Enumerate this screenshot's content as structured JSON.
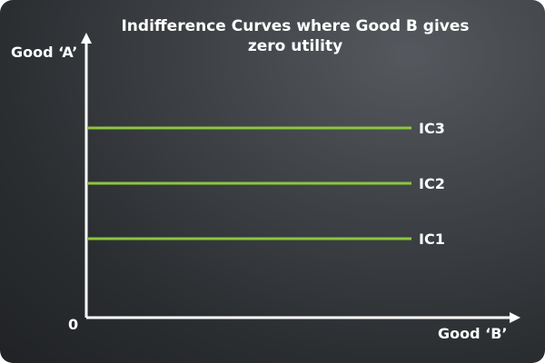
{
  "chart_data": {
    "type": "line",
    "title": "Indifference Curves where Good B gives zero utility",
    "xlabel": "Good ‘B’",
    "ylabel": "Good ‘A’",
    "origin_label": "0",
    "grid": false,
    "series": [
      {
        "name": "IC1",
        "level": 1
      },
      {
        "name": "IC2",
        "level": 2
      },
      {
        "name": "IC3",
        "level": 3
      }
    ],
    "colors": {
      "curve": "#8cc63f",
      "axis": "#ffffff",
      "text": "#ffffff"
    }
  }
}
